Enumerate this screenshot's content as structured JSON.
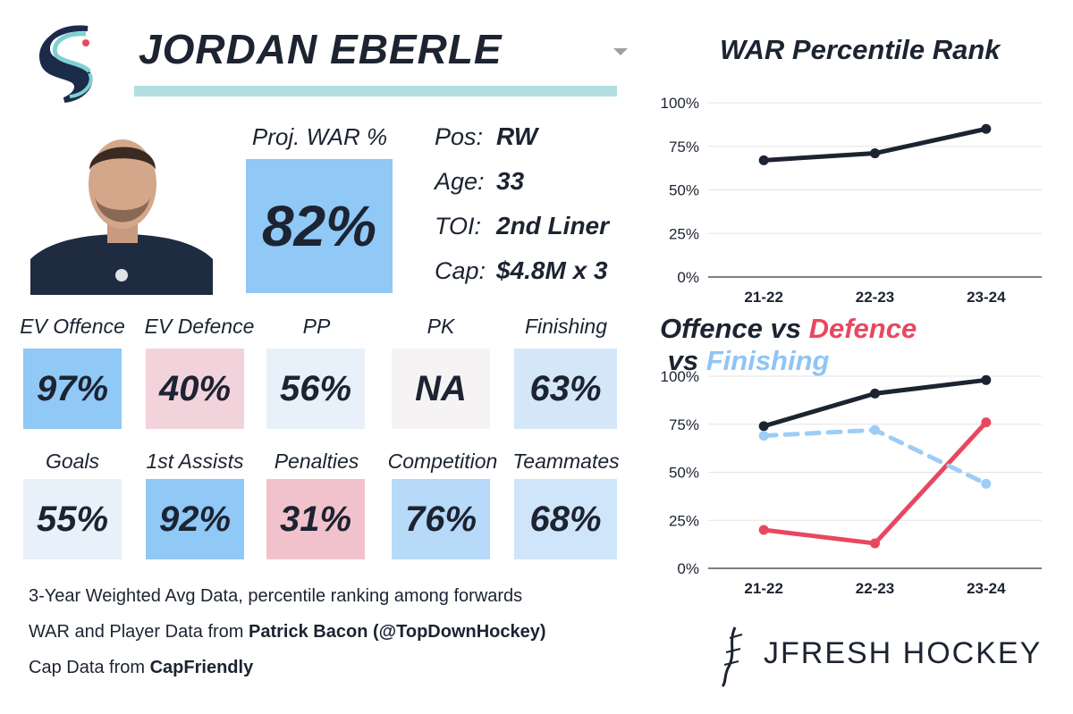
{
  "player": {
    "name": "JORDAN EBERLE",
    "proj_war_label": "Proj. WAR %",
    "proj_war_value": "82%",
    "info": [
      {
        "label": "Pos:",
        "value": "RW"
      },
      {
        "label": "Age:",
        "value": "33"
      },
      {
        "label": "TOI:",
        "value": "2nd Liner"
      },
      {
        "label": "Cap:",
        "value": "$4.8M x 3"
      }
    ]
  },
  "stats_row1": [
    {
      "label": "EV Offence",
      "value": "97%",
      "color": "#90c8f6"
    },
    {
      "label": "EV Defence",
      "value": "40%",
      "color": "#f2d3dc"
    },
    {
      "label": "PP",
      "value": "56%",
      "color": "#e8f0f9"
    },
    {
      "label": "PK",
      "value": "NA",
      "color": "#f5f3f4"
    },
    {
      "label": "Finishing",
      "value": "63%",
      "color": "#d4e7f9"
    }
  ],
  "stats_row2": [
    {
      "label": "Goals",
      "value": "55%",
      "color": "#e8f0f9"
    },
    {
      "label": "1st Assists",
      "value": "92%",
      "color": "#90c8f6"
    },
    {
      "label": "Penalties",
      "value": "31%",
      "color": "#f2c2cc"
    },
    {
      "label": "Competition",
      "value": "76%",
      "color": "#b6daf8"
    },
    {
      "label": "Teammates",
      "value": "68%",
      "color": "#cfe5f9"
    }
  ],
  "footer": {
    "line1": "3-Year Weighted Avg Data, percentile ranking among forwards",
    "line2_prefix": "WAR and Player Data from ",
    "line2_bold": "Patrick Bacon (@TopDownHockey)",
    "line3_prefix": "Cap Data from ",
    "line3_bold": "CapFriendly"
  },
  "brand": "JFRESH HOCKEY",
  "chart_data": [
    {
      "type": "line",
      "title": "WAR Percentile Rank",
      "categories": [
        "21-22",
        "22-23",
        "23-24"
      ],
      "series": [
        {
          "name": "WAR",
          "values": [
            67,
            71,
            85
          ],
          "color": "#1c2331",
          "dashed": false
        }
      ],
      "yticks": [
        "0%",
        "25%",
        "50%",
        "75%",
        "100%"
      ],
      "ylim": [
        0,
        100
      ]
    },
    {
      "type": "line",
      "title_parts": [
        {
          "text": "Offence",
          "color": "#1c2331"
        },
        {
          "text": " vs ",
          "color": "#1c2331"
        },
        {
          "text": "Defence",
          "color": "#e8485f"
        },
        {
          "text": " vs ",
          "color": "#1c2331"
        },
        {
          "text": "Finishing",
          "color": "#8ec5f5"
        }
      ],
      "categories": [
        "21-22",
        "22-23",
        "23-24"
      ],
      "series": [
        {
          "name": "Offence",
          "values": [
            74,
            91,
            98
          ],
          "color": "#1c2331",
          "dashed": false
        },
        {
          "name": "Defence",
          "values": [
            20,
            13,
            76
          ],
          "color": "#e8485f",
          "dashed": false
        },
        {
          "name": "Finishing",
          "values": [
            69,
            72,
            44
          ],
          "color": "#9dcdf6",
          "dashed": true
        }
      ],
      "yticks": [
        "0%",
        "25%",
        "50%",
        "75%",
        "100%"
      ],
      "ylim": [
        0,
        100
      ]
    }
  ]
}
